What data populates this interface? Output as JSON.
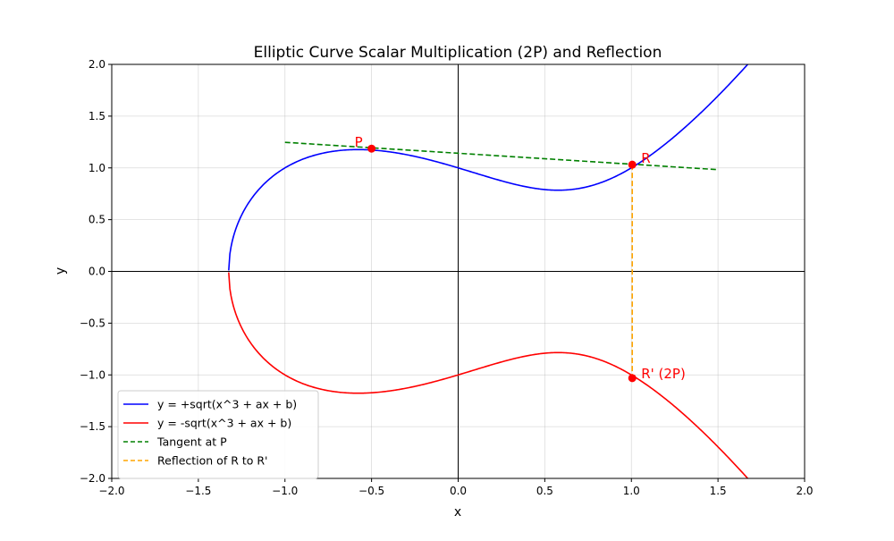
{
  "chart_data": {
    "type": "line",
    "title": "Elliptic Curve Scalar Multiplication (2P) and Reflection",
    "xlabel": "x",
    "ylabel": "y",
    "xlim": [
      -2.0,
      2.0
    ],
    "ylim": [
      -2.0,
      2.0
    ],
    "xticks": [
      -2.0,
      -1.5,
      -1.0,
      -0.5,
      0.0,
      0.5,
      1.0,
      1.5,
      2.0
    ],
    "yticks": [
      -2.0,
      -1.5,
      -1.0,
      -0.5,
      0.0,
      0.5,
      1.0,
      1.5,
      2.0
    ],
    "xtick_labels": [
      "−2.0",
      "−1.5",
      "−1.0",
      "−0.5",
      "0.0",
      "0.5",
      "1.0",
      "1.5",
      "2.0"
    ],
    "ytick_labels": [
      "−2.0",
      "−1.5",
      "−1.0",
      "−0.5",
      "0.0",
      "0.5",
      "1.0",
      "1.5",
      "2.0"
    ],
    "grid": true,
    "legend_position": "lower-left",
    "curve_params": {
      "a": -1,
      "b": 1,
      "x_min": -1.3247,
      "x_max": 2.0
    },
    "series": [
      {
        "name": "y = +sqrt(x^3 + ax + b)",
        "color": "#0000ff",
        "style": "solid",
        "kind": "curve",
        "sign": 1
      },
      {
        "name": "y = -sqrt(x^3 + ax + b)",
        "color": "#ff0000",
        "style": "solid",
        "kind": "curve",
        "sign": -1
      },
      {
        "name": "Tangent at P",
        "color": "#008000",
        "style": "dashed",
        "kind": "segment",
        "points": [
          [
            -1.0,
            1.247
          ],
          [
            1.5,
            0.983
          ]
        ]
      },
      {
        "name": "Reflection of R to R'",
        "color": "#ffa500",
        "style": "dashed",
        "kind": "segment",
        "points": [
          [
            1.005,
            1.031
          ],
          [
            1.005,
            -1.031
          ]
        ]
      }
    ],
    "points": [
      {
        "label": "P",
        "x": -0.5,
        "y": 1.186,
        "color": "#ff0000",
        "label_side": "left"
      },
      {
        "label": "R",
        "x": 1.005,
        "y": 1.031,
        "color": "#ff0000",
        "label_side": "right"
      },
      {
        "label": "R' (2P)",
        "x": 1.005,
        "y": -1.031,
        "color": "#ff0000",
        "label_side": "right"
      }
    ]
  }
}
